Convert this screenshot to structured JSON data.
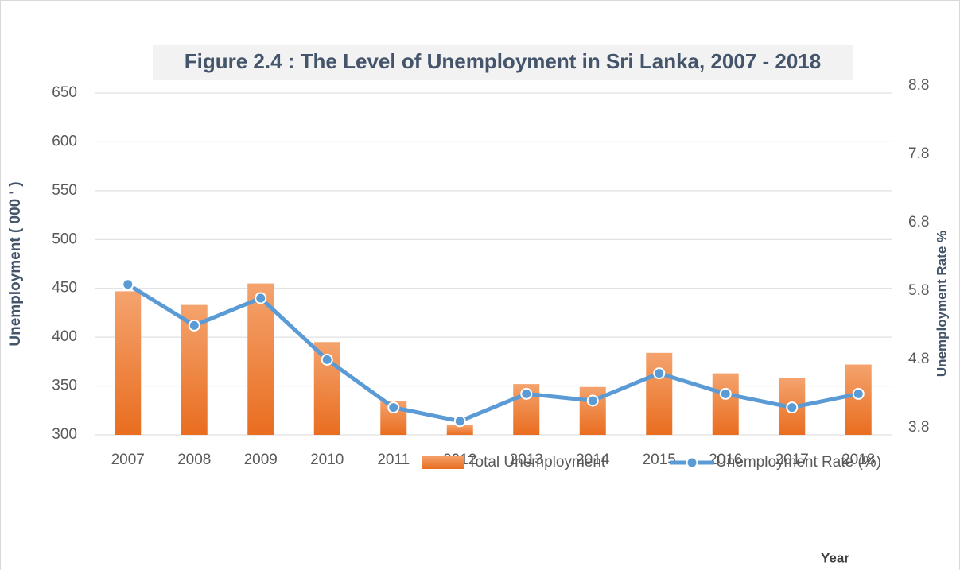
{
  "chart_data": {
    "type": "bar",
    "title": "Figure 2.4 : The Level of Unemployment in Sri Lanka,  2007 - 2018",
    "y_label": "Unemployment ( 000 ' )",
    "y2_label": "Unemployment  Rate %",
    "x_label": "Year",
    "categories": [
      "2007",
      "2008",
      "2009",
      "2010",
      "2011",
      "2012",
      "2013",
      "2014",
      "2015",
      "2016",
      "2017",
      "2018"
    ],
    "series": [
      {
        "name": "Total Unemployment",
        "type": "bar",
        "color": "#ed7d31",
        "values": [
          447,
          433,
          455,
          395,
          335,
          310,
          352,
          349,
          384,
          363,
          358,
          372
        ]
      },
      {
        "name": "Unemployment Rate (%)",
        "type": "line",
        "axis": "y2",
        "color": "#5b9bd5",
        "values": [
          6.0,
          5.4,
          5.8,
          4.9,
          4.2,
          4.0,
          4.4,
          4.3,
          4.7,
          4.4,
          4.2,
          4.4
        ]
      }
    ],
    "ylim": [
      300,
      650
    ],
    "yticks": [
      300,
      350,
      400,
      450,
      500,
      550,
      600,
      650
    ],
    "y2lim": [
      3.8,
      8.8
    ],
    "y2ticks": [
      3.8,
      4.8,
      5.8,
      6.8,
      7.8,
      8.8
    ],
    "grid": true,
    "legend": "bottom"
  }
}
